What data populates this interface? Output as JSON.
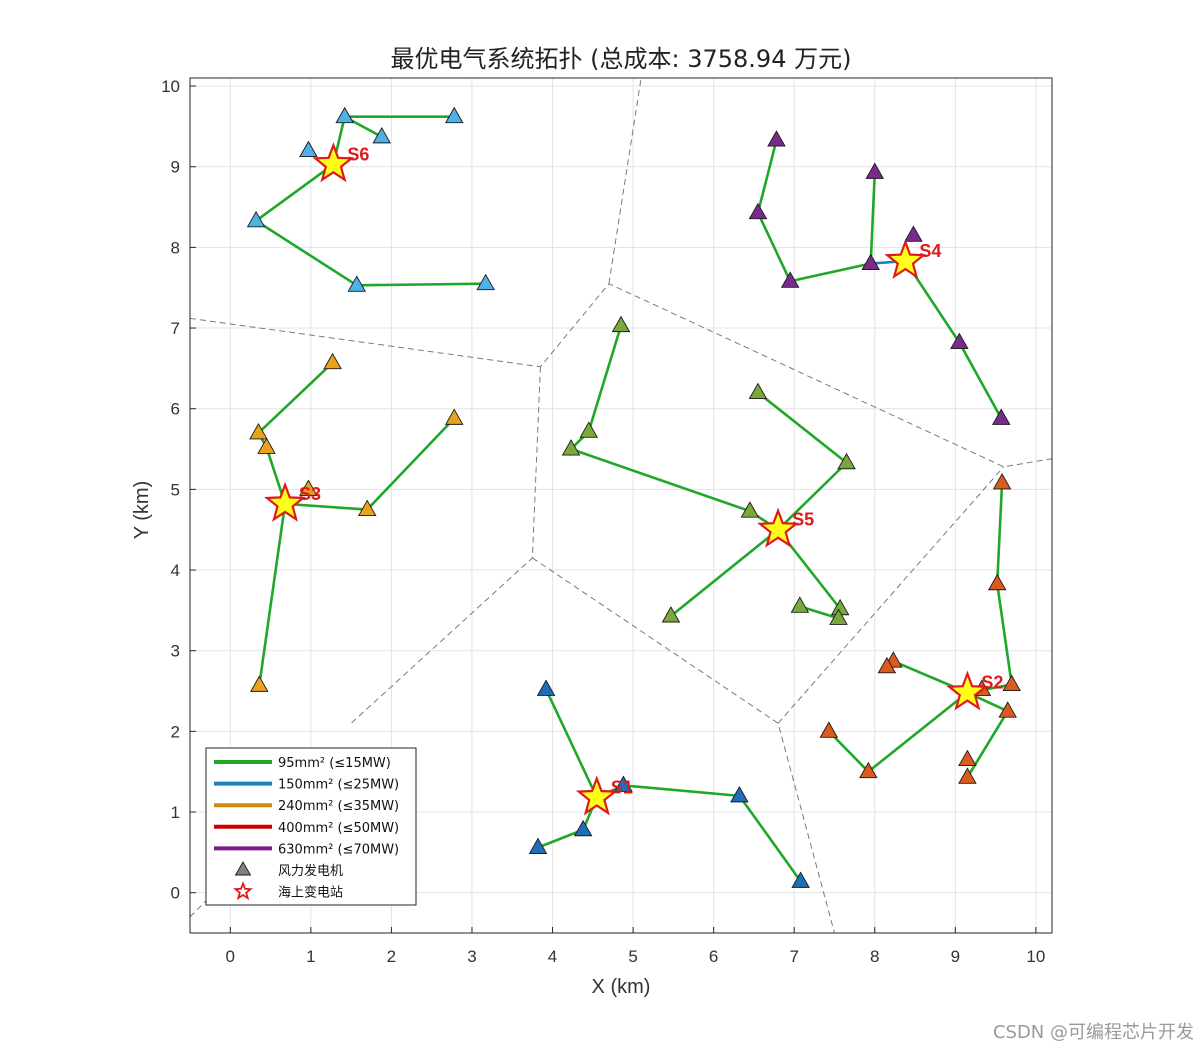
{
  "chart_data": {
    "type": "scatter",
    "title": "最优电气系统拓扑 (总成本: 3758.94 万元)",
    "xlabel": "X (km)",
    "ylabel": "Y (km)",
    "xlim": [
      -0.5,
      10.2
    ],
    "ylim": [
      -0.5,
      10.1
    ],
    "xticks": [
      0,
      1,
      2,
      3,
      4,
      5,
      6,
      7,
      8,
      9,
      10
    ],
    "yticks": [
      0,
      1,
      2,
      3,
      4,
      5,
      6,
      7,
      8,
      9,
      10
    ],
    "grid": true,
    "legend_position": "bottom-left",
    "legend": [
      {
        "label": "95mm² (≤15MW)",
        "color": "#1fa828",
        "kind": "line"
      },
      {
        "label": "150mm² (≤25MW)",
        "color": "#1f7fbf",
        "kind": "line"
      },
      {
        "label": "240mm² (≤35MW)",
        "color": "#d08a12",
        "kind": "line"
      },
      {
        "label": "400mm² (≤50MW)",
        "color": "#cc0000",
        "kind": "line"
      },
      {
        "label": "630mm² (≤70MW)",
        "color": "#7a1a8a",
        "kind": "line"
      },
      {
        "label": "风力发电机",
        "color": "#808080",
        "kind": "triangle"
      },
      {
        "label": "海上变电站",
        "color": "#e0191b",
        "kind": "star"
      }
    ],
    "voronoi_boundaries": [
      [
        [
          -0.5,
          7.12
        ],
        [
          3.85,
          6.52
        ],
        [
          4.7,
          7.55
        ],
        [
          9.6,
          5.28
        ],
        [
          10.2,
          5.38
        ]
      ],
      [
        [
          3.85,
          6.52
        ],
        [
          3.75,
          4.15
        ],
        [
          1.5,
          2.1
        ]
      ],
      [
        [
          3.75,
          4.15
        ],
        [
          6.8,
          2.1
        ],
        [
          7.5,
          -0.5
        ]
      ],
      [
        [
          6.8,
          2.1
        ],
        [
          9.6,
          5.28
        ]
      ],
      [
        [
          4.7,
          7.55
        ],
        [
          5.1,
          10.1
        ]
      ],
      [
        [
          -0.5,
          -0.3
        ],
        [
          -0.3,
          -0.1
        ]
      ]
    ],
    "stations": [
      {
        "id": "S1",
        "x": 4.55,
        "y": 1.18
      },
      {
        "id": "S2",
        "x": 9.15,
        "y": 2.48
      },
      {
        "id": "S3",
        "x": 0.68,
        "y": 4.82
      },
      {
        "id": "S4",
        "x": 8.38,
        "y": 7.83
      },
      {
        "id": "S5",
        "x": 6.8,
        "y": 4.5
      },
      {
        "id": "S6",
        "x": 1.28,
        "y": 9.03
      }
    ],
    "clusters": [
      {
        "station": "S1",
        "color": "#1f6fb8",
        "turbines": [
          [
            3.92,
            2.52
          ],
          [
            4.88,
            1.33
          ],
          [
            6.32,
            1.2
          ],
          [
            7.08,
            0.14
          ],
          [
            4.38,
            0.78
          ],
          [
            3.82,
            0.56
          ]
        ],
        "edges": [
          {
            "from": [
              4.55,
              1.18
            ],
            "to": [
              3.92,
              2.52
            ],
            "type": "95"
          },
          {
            "from": [
              4.55,
              1.18
            ],
            "to": [
              4.88,
              1.33
            ],
            "type": "95"
          },
          {
            "from": [
              4.88,
              1.33
            ],
            "to": [
              6.32,
              1.2
            ],
            "type": "95"
          },
          {
            "from": [
              6.32,
              1.2
            ],
            "to": [
              7.08,
              0.14
            ],
            "type": "95"
          },
          {
            "from": [
              4.55,
              1.18
            ],
            "to": [
              4.38,
              0.78
            ],
            "type": "95"
          },
          {
            "from": [
              4.38,
              0.78
            ],
            "to": [
              3.82,
              0.56
            ],
            "type": "95"
          }
        ]
      },
      {
        "station": "S2",
        "color": "#dd5a1e",
        "turbines": [
          [
            9.58,
            5.08
          ],
          [
            9.52,
            3.83
          ],
          [
            9.7,
            2.58
          ],
          [
            9.33,
            2.52
          ],
          [
            9.65,
            2.25
          ],
          [
            8.23,
            2.87
          ],
          [
            8.15,
            2.8
          ],
          [
            9.15,
            1.65
          ],
          [
            9.15,
            1.43
          ],
          [
            7.92,
            1.5
          ],
          [
            7.43,
            2.0
          ]
        ],
        "edges": [
          {
            "from": [
              9.15,
              2.48
            ],
            "to": [
              9.7,
              2.58
            ],
            "type": "95"
          },
          {
            "from": [
              9.7,
              2.58
            ],
            "to": [
              9.52,
              3.83
            ],
            "type": "95"
          },
          {
            "from": [
              9.52,
              3.83
            ],
            "to": [
              9.58,
              5.08
            ],
            "type": "95"
          },
          {
            "from": [
              9.15,
              2.48
            ],
            "to": [
              8.23,
              2.87
            ],
            "type": "95"
          },
          {
            "from": [
              9.15,
              2.48
            ],
            "to": [
              9.65,
              2.25
            ],
            "type": "95"
          },
          {
            "from": [
              9.65,
              2.25
            ],
            "to": [
              9.15,
              1.43
            ],
            "type": "95"
          },
          {
            "from": [
              9.15,
              2.48
            ],
            "to": [
              7.92,
              1.5
            ],
            "type": "95"
          },
          {
            "from": [
              7.92,
              1.5
            ],
            "to": [
              7.43,
              2.0
            ],
            "type": "95"
          }
        ]
      },
      {
        "station": "S3",
        "color": "#e8a21e",
        "turbines": [
          [
            1.27,
            6.57
          ],
          [
            0.35,
            5.7
          ],
          [
            0.45,
            5.52
          ],
          [
            0.97,
            5.0
          ],
          [
            1.7,
            4.75
          ],
          [
            2.78,
            5.88
          ],
          [
            0.36,
            2.57
          ]
        ],
        "edges": [
          {
            "from": [
              0.35,
              5.7
            ],
            "to": [
              1.27,
              6.57
            ],
            "type": "95"
          },
          {
            "from": [
              0.35,
              5.7
            ],
            "to": [
              0.45,
              5.52
            ],
            "type": "95"
          },
          {
            "from": [
              0.45,
              5.52
            ],
            "to": [
              0.68,
              4.82
            ],
            "type": "95"
          },
          {
            "from": [
              0.68,
              4.82
            ],
            "to": [
              1.7,
              4.75
            ],
            "type": "95"
          },
          {
            "from": [
              1.7,
              4.75
            ],
            "to": [
              2.78,
              5.88
            ],
            "type": "95"
          },
          {
            "from": [
              0.68,
              4.82
            ],
            "to": [
              0.36,
              2.57
            ],
            "type": "95"
          }
        ]
      },
      {
        "station": "S4",
        "color": "#7a2a8a",
        "turbines": [
          [
            6.78,
            9.33
          ],
          [
            8.0,
            8.93
          ],
          [
            6.55,
            8.43
          ],
          [
            8.48,
            8.15
          ],
          [
            7.95,
            7.8
          ],
          [
            6.95,
            7.58
          ],
          [
            9.05,
            6.82
          ],
          [
            9.57,
            5.88
          ]
        ],
        "edges": [
          {
            "from": [
              6.78,
              9.33
            ],
            "to": [
              6.55,
              8.43
            ],
            "type": "95"
          },
          {
            "from": [
              6.55,
              8.43
            ],
            "to": [
              6.95,
              7.58
            ],
            "type": "95"
          },
          {
            "from": [
              6.95,
              7.58
            ],
            "to": [
              7.95,
              7.8
            ],
            "type": "95"
          },
          {
            "from": [
              7.95,
              7.8
            ],
            "to": [
              8.0,
              8.93
            ],
            "type": "95"
          },
          {
            "from": [
              7.95,
              7.8
            ],
            "to": [
              8.38,
              7.83
            ],
            "type": "150"
          },
          {
            "from": [
              8.38,
              7.83
            ],
            "to": [
              9.05,
              6.82
            ],
            "type": "95"
          },
          {
            "from": [
              9.05,
              6.82
            ],
            "to": [
              9.57,
              5.88
            ],
            "type": "95"
          }
        ]
      },
      {
        "station": "S5",
        "color": "#7aa83a",
        "turbines": [
          [
            4.85,
            7.03
          ],
          [
            4.45,
            5.72
          ],
          [
            4.23,
            5.5
          ],
          [
            6.55,
            6.2
          ],
          [
            7.65,
            5.33
          ],
          [
            6.45,
            4.73
          ],
          [
            5.47,
            3.43
          ],
          [
            7.07,
            3.55
          ],
          [
            7.57,
            3.52
          ],
          [
            7.55,
            3.4
          ]
        ],
        "edges": [
          {
            "from": [
              4.85,
              7.03
            ],
            "to": [
              4.45,
              5.72
            ],
            "type": "95"
          },
          {
            "from": [
              4.45,
              5.72
            ],
            "to": [
              4.23,
              5.5
            ],
            "type": "95"
          },
          {
            "from": [
              4.23,
              5.5
            ],
            "to": [
              6.45,
              4.73
            ],
            "type": "95"
          },
          {
            "from": [
              6.45,
              4.73
            ],
            "to": [
              6.8,
              4.5
            ],
            "type": "95"
          },
          {
            "from": [
              6.55,
              6.2
            ],
            "to": [
              7.65,
              5.33
            ],
            "type": "95"
          },
          {
            "from": [
              7.65,
              5.33
            ],
            "to": [
              6.8,
              4.5
            ],
            "type": "95"
          },
          {
            "from": [
              6.8,
              4.5
            ],
            "to": [
              5.47,
              3.43
            ],
            "type": "95"
          },
          {
            "from": [
              6.8,
              4.5
            ],
            "to": [
              7.57,
              3.52
            ],
            "type": "95"
          },
          {
            "from": [
              7.07,
              3.55
            ],
            "to": [
              7.55,
              3.4
            ],
            "type": "95"
          }
        ]
      },
      {
        "station": "S6",
        "color": "#4fb2e6",
        "turbines": [
          [
            1.42,
            9.62
          ],
          [
            2.78,
            9.62
          ],
          [
            1.88,
            9.37
          ],
          [
            0.97,
            9.2
          ],
          [
            0.32,
            8.33
          ],
          [
            1.57,
            7.53
          ],
          [
            3.17,
            7.55
          ]
        ],
        "edges": [
          {
            "from": [
              1.28,
              9.03
            ],
            "to": [
              1.42,
              9.62
            ],
            "type": "95"
          },
          {
            "from": [
              1.42,
              9.62
            ],
            "to": [
              2.78,
              9.62
            ],
            "type": "95"
          },
          {
            "from": [
              1.42,
              9.62
            ],
            "to": [
              1.88,
              9.37
            ],
            "type": "95"
          },
          {
            "from": [
              1.28,
              9.03
            ],
            "to": [
              0.32,
              8.33
            ],
            "type": "95"
          },
          {
            "from": [
              0.32,
              8.33
            ],
            "to": [
              1.57,
              7.53
            ],
            "type": "95"
          },
          {
            "from": [
              1.57,
              7.53
            ],
            "to": [
              3.17,
              7.55
            ],
            "type": "95"
          }
        ]
      }
    ]
  },
  "watermark": "CSDN @可编程芯片开发",
  "cable_colors": {
    "95": "#1fa828",
    "150": "#1f7fbf",
    "240": "#d08a12",
    "400": "#cc0000",
    "630": "#7a1a8a"
  }
}
